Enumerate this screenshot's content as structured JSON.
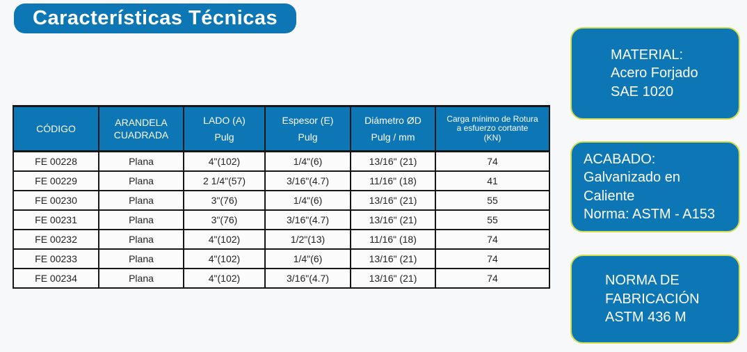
{
  "title": {
    "text": "Características Técnicas"
  },
  "colors": {
    "accent_blue": "#0d76b5",
    "box_border_yellow_green": "#d3dc4a",
    "page_background": "#f7f8fa",
    "grid_line": "#161616",
    "text_on_blue": "#ffffff"
  },
  "table": {
    "headers": [
      {
        "line1": "CÓDIGO"
      },
      {
        "line1": "ARANDELA",
        "line2": "CUADRADA"
      },
      {
        "line1": "LADO (A)",
        "line2": "Pulg"
      },
      {
        "line1": "Espesor (E)",
        "line2": "Pulg"
      },
      {
        "line1": "Diámetro ØD",
        "line2": "Pulg  / mm"
      },
      {
        "line1": "Carga mínimo de Rotura",
        "line2": "a esfuerzo cortante",
        "line3": "(KN)"
      }
    ],
    "rows": [
      {
        "codigo": "FE 00228",
        "arandela": "Plana",
        "lado": "4\"(102)",
        "espesor": "1/4\"(6)",
        "diametro": "13/16\" (21)",
        "carga": "74"
      },
      {
        "codigo": "FE 00229",
        "arandela": "Plana",
        "lado": "2 1/4\"(57)",
        "espesor": "3/16\"(4.7)",
        "diametro": "11/16\" (18)",
        "carga": "41"
      },
      {
        "codigo": "FE 00230",
        "arandela": "Plana",
        "lado": "3\"(76)",
        "espesor": "1/4\"(6)",
        "diametro": "13/16\" (21)",
        "carga": "55"
      },
      {
        "codigo": "FE 00231",
        "arandela": "Plana",
        "lado": "3\"(76)",
        "espesor": "3/16\"(4.7)",
        "diametro": "13/16\" (21)",
        "carga": "55"
      },
      {
        "codigo": "FE 00232",
        "arandela": "Plana",
        "lado": "4\"(102)",
        "espesor": "1/2\"(13)",
        "diametro": "11/16\" (18)",
        "carga": "74"
      },
      {
        "codigo": "FE 00233",
        "arandela": "Plana",
        "lado": "4\"(102)",
        "espesor": "1/4\"(6)",
        "diametro": "13/16\" (21)",
        "carga": "74"
      },
      {
        "codigo": "FE 00234",
        "arandela": "Plana",
        "lado": "4\"(102)",
        "espesor": "3/16\"(4.7)",
        "diametro": "13/16\" (21)",
        "carga": "74"
      }
    ]
  },
  "boxes": {
    "material": {
      "line1": "MATERIAL:",
      "line2": "Acero Forjado",
      "line3": "SAE 1020"
    },
    "acabado": {
      "line1": "ACABADO:",
      "line2": "Galvanizado en",
      "line3": "Caliente",
      "line4": "Norma: ASTM - A153"
    },
    "norma": {
      "line1": "NORMA DE",
      "line2": "FABRICACIÓN",
      "line3": "ASTM 436 M"
    }
  }
}
